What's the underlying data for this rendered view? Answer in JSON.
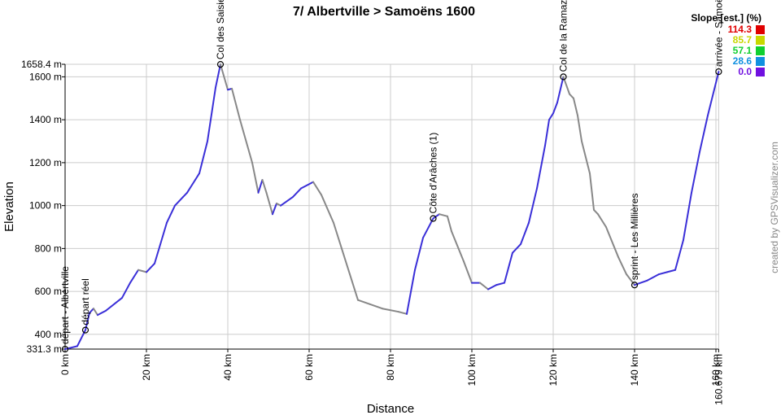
{
  "chart_data": {
    "type": "line",
    "title": "7/ Albertville > Samoëns 1600",
    "x_label": "Distance",
    "y_label": "Elevation",
    "credit": "created by GPSVisualizer.com",
    "ascent_color": "#3a2fd8",
    "descent_color": "#888888",
    "grid": true,
    "x": [
      0,
      3,
      5,
      6,
      7,
      8,
      10,
      14,
      16,
      18,
      20,
      22,
      25,
      27,
      29,
      30,
      32,
      33,
      35,
      37,
      38.2,
      40,
      41,
      43,
      46,
      47.5,
      48.5,
      49.5,
      51,
      52,
      53,
      56,
      58,
      61,
      63,
      66,
      68,
      70,
      72,
      75,
      78,
      82,
      84,
      86,
      88,
      90.5,
      92,
      94,
      95,
      98,
      100,
      102,
      104,
      106,
      108,
      110,
      112,
      114,
      116,
      118,
      119,
      120,
      121,
      122.5,
      124,
      125,
      126,
      127,
      129,
      130,
      131,
      133,
      136,
      138,
      140,
      143,
      146,
      148,
      150,
      152,
      154,
      156,
      158,
      160.679
    ],
    "series": [
      {
        "name": "Elevation",
        "values": [
          331,
          345,
          420,
          500,
          520,
          490,
          510,
          570,
          640,
          700,
          690,
          730,
          920,
          1000,
          1040,
          1060,
          1120,
          1150,
          1300,
          1550,
          1658,
          1540,
          1545,
          1400,
          1200,
          1060,
          1120,
          1060,
          960,
          1010,
          1000,
          1040,
          1080,
          1110,
          1050,
          920,
          800,
          680,
          560,
          540,
          520,
          505,
          495,
          700,
          850,
          940,
          960,
          950,
          880,
          740,
          640,
          640,
          610,
          630,
          640,
          780,
          820,
          920,
          1080,
          1280,
          1400,
          1430,
          1480,
          1600,
          1520,
          1500,
          1420,
          1300,
          1150,
          980,
          960,
          900,
          760,
          680,
          630,
          650,
          680,
          690,
          700,
          840,
          1060,
          1250,
          1420,
          1624
        ]
      }
    ],
    "waypoints": [
      {
        "label": "départ - Albertville",
        "x": 0,
        "y": 331
      },
      {
        "label": "départ réel",
        "x": 5,
        "y": 420
      },
      {
        "label": "Col des Saisies",
        "x": 38.2,
        "y": 1658
      },
      {
        "label": "Côte d'Arâches (1)",
        "x": 90.5,
        "y": 940
      },
      {
        "label": "Col de la Ramaz",
        "x": 122.5,
        "y": 1600
      },
      {
        "label": "sprint - Les Millières",
        "x": 140,
        "y": 630
      },
      {
        "label": "arrivée - Samoëns",
        "x": 160.679,
        "y": 1624
      }
    ],
    "xlim": [
      0,
      160.679
    ],
    "ylim": [
      331.3,
      1658.4
    ],
    "xticks": [
      {
        "value": 0,
        "label": "0 km"
      },
      {
        "value": 20,
        "label": "20 km"
      },
      {
        "value": 40,
        "label": "40 km"
      },
      {
        "value": 60,
        "label": "60 km"
      },
      {
        "value": 80,
        "label": "80 km"
      },
      {
        "value": 100,
        "label": "100 km"
      },
      {
        "value": 120,
        "label": "120 km"
      },
      {
        "value": 140,
        "label": "140 km"
      },
      {
        "value": 160,
        "label": "160 km"
      },
      {
        "value": 160.679,
        "label": "160.679 km"
      }
    ],
    "yticks": [
      {
        "value": 331.3,
        "label": "331.3 m"
      },
      {
        "value": 400,
        "label": "400 m"
      },
      {
        "value": 600,
        "label": "600 m"
      },
      {
        "value": 800,
        "label": "800 m"
      },
      {
        "value": 1000,
        "label": "1000 m"
      },
      {
        "value": 1200,
        "label": "1200 m"
      },
      {
        "value": 1400,
        "label": "1400 m"
      },
      {
        "value": 1600,
        "label": "1600 m"
      },
      {
        "value": 1658.4,
        "label": "1658.4 m"
      }
    ],
    "legend": {
      "title": "Slope [est.] (%)",
      "items": [
        {
          "label": "114.3",
          "color": "#e00000"
        },
        {
          "label": "85.7",
          "color": "#c8d800"
        },
        {
          "label": "57.1",
          "color": "#10d030"
        },
        {
          "label": "28.6",
          "color": "#1090e0"
        },
        {
          "label": "0.0",
          "color": "#7010e0"
        }
      ]
    }
  }
}
